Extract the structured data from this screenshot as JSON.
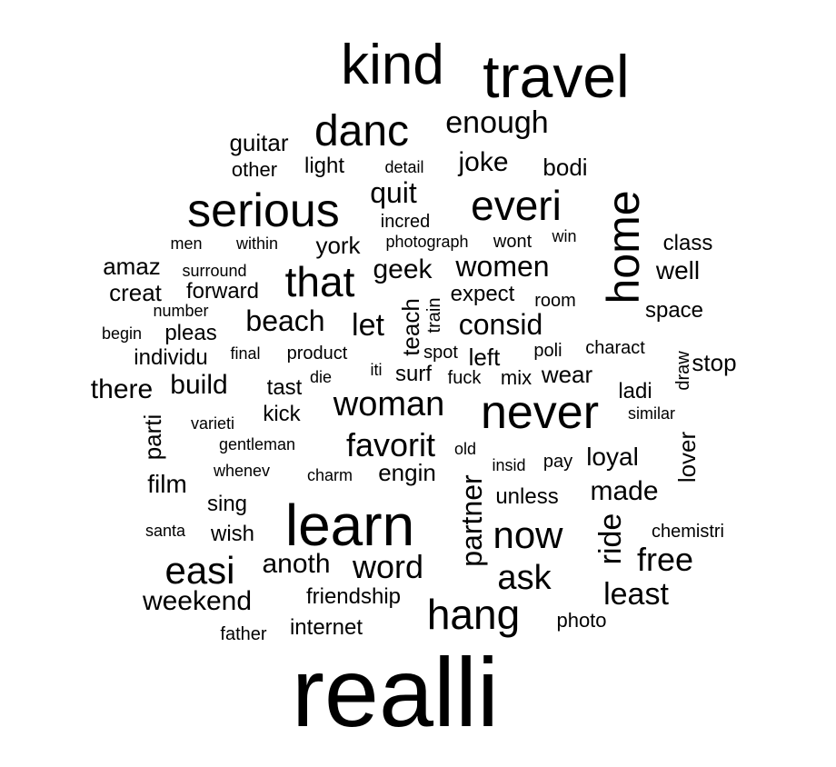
{
  "words": [
    {
      "text": "realli",
      "weight": 100,
      "orientation": "horizontal"
    },
    {
      "text": "travel",
      "weight": 60,
      "orientation": "horizontal"
    },
    {
      "text": "kind",
      "weight": 54,
      "orientation": "horizontal"
    },
    {
      "text": "learn",
      "weight": 52,
      "orientation": "horizontal"
    },
    {
      "text": "never",
      "weight": 44,
      "orientation": "horizontal"
    },
    {
      "text": "serious",
      "weight": 44,
      "orientation": "horizontal"
    },
    {
      "text": "home",
      "weight": 41,
      "orientation": "vertical"
    },
    {
      "text": "danc",
      "weight": 40,
      "orientation": "horizontal"
    },
    {
      "text": "everi",
      "weight": 39,
      "orientation": "horizontal"
    },
    {
      "text": "that",
      "weight": 38,
      "orientation": "horizontal"
    },
    {
      "text": "hang",
      "weight": 38,
      "orientation": "horizontal"
    },
    {
      "text": "easi",
      "weight": 36,
      "orientation": "horizontal"
    },
    {
      "text": "now",
      "weight": 35,
      "orientation": "horizontal"
    },
    {
      "text": "woman",
      "weight": 34,
      "orientation": "horizontal"
    },
    {
      "text": "favorit",
      "weight": 32,
      "orientation": "horizontal"
    },
    {
      "text": "ask",
      "weight": 32,
      "orientation": "horizontal"
    },
    {
      "text": "word",
      "weight": 31,
      "orientation": "horizontal"
    },
    {
      "text": "free",
      "weight": 31,
      "orientation": "horizontal"
    },
    {
      "text": "enough",
      "weight": 30,
      "orientation": "horizontal"
    },
    {
      "text": "partner",
      "weight": 30,
      "orientation": "vertical"
    },
    {
      "text": "ride",
      "weight": 30,
      "orientation": "vertical"
    },
    {
      "text": "quit",
      "weight": 29,
      "orientation": "horizontal"
    },
    {
      "text": "women",
      "weight": 29,
      "orientation": "horizontal"
    },
    {
      "text": "beach",
      "weight": 29,
      "orientation": "horizontal"
    },
    {
      "text": "let",
      "weight": 29,
      "orientation": "horizontal"
    },
    {
      "text": "consid",
      "weight": 28,
      "orientation": "horizontal"
    },
    {
      "text": "least",
      "weight": 28,
      "orientation": "horizontal"
    },
    {
      "text": "geek",
      "weight": 27,
      "orientation": "horizontal"
    },
    {
      "text": "joke",
      "weight": 27,
      "orientation": "horizontal"
    },
    {
      "text": "weekend",
      "weight": 27,
      "orientation": "horizontal"
    },
    {
      "text": "anoth",
      "weight": 27,
      "orientation": "horizontal"
    },
    {
      "text": "made",
      "weight": 26,
      "orientation": "horizontal"
    },
    {
      "text": "there",
      "weight": 26,
      "orientation": "horizontal"
    },
    {
      "text": "build",
      "weight": 26,
      "orientation": "horizontal"
    },
    {
      "text": "well",
      "weight": 25,
      "orientation": "horizontal"
    },
    {
      "text": "loyal",
      "weight": 25,
      "orientation": "horizontal"
    },
    {
      "text": "film",
      "weight": 25,
      "orientation": "horizontal"
    },
    {
      "text": "engin",
      "weight": 24,
      "orientation": "horizontal"
    },
    {
      "text": "guitar",
      "weight": 24,
      "orientation": "horizontal"
    },
    {
      "text": "teach",
      "weight": 24,
      "orientation": "vertical"
    },
    {
      "text": "parti",
      "weight": 24,
      "orientation": "vertical"
    },
    {
      "text": "amaz",
      "weight": 23,
      "orientation": "horizontal"
    },
    {
      "text": "creat",
      "weight": 23,
      "orientation": "horizontal"
    },
    {
      "text": "bodi",
      "weight": 23,
      "orientation": "horizontal"
    },
    {
      "text": "york",
      "weight": 23,
      "orientation": "horizontal"
    },
    {
      "text": "forward",
      "weight": 23,
      "orientation": "horizontal"
    },
    {
      "text": "left",
      "weight": 23,
      "orientation": "horizontal"
    },
    {
      "text": "wear",
      "weight": 23,
      "orientation": "horizontal"
    },
    {
      "text": "stop",
      "weight": 23,
      "orientation": "horizontal"
    },
    {
      "text": "lover",
      "weight": 23,
      "orientation": "vertical"
    },
    {
      "text": "light",
      "weight": 22,
      "orientation": "horizontal"
    },
    {
      "text": "class",
      "weight": 22,
      "orientation": "horizontal"
    },
    {
      "text": "expect",
      "weight": 22,
      "orientation": "horizontal"
    },
    {
      "text": "space",
      "weight": 22,
      "orientation": "horizontal"
    },
    {
      "text": "pleas",
      "weight": 22,
      "orientation": "horizontal"
    },
    {
      "text": "surf",
      "weight": 22,
      "orientation": "horizontal"
    },
    {
      "text": "tast",
      "weight": 22,
      "orientation": "horizontal"
    },
    {
      "text": "kick",
      "weight": 22,
      "orientation": "horizontal"
    },
    {
      "text": "sing",
      "weight": 22,
      "orientation": "horizontal"
    },
    {
      "text": "unless",
      "weight": 22,
      "orientation": "horizontal"
    },
    {
      "text": "wish",
      "weight": 22,
      "orientation": "horizontal"
    },
    {
      "text": "friendship",
      "weight": 22,
      "orientation": "horizontal"
    },
    {
      "text": "internet",
      "weight": 22,
      "orientation": "horizontal"
    },
    {
      "text": "ladi",
      "weight": 21,
      "orientation": "horizontal"
    },
    {
      "text": "individu",
      "weight": 21,
      "orientation": "horizontal"
    },
    {
      "text": "photo",
      "weight": 21,
      "orientation": "horizontal"
    },
    {
      "text": "other",
      "weight": 21,
      "orientation": "horizontal"
    },
    {
      "text": "mix",
      "weight": 21,
      "orientation": "horizontal"
    },
    {
      "text": "wont",
      "weight": 20,
      "orientation": "horizontal"
    },
    {
      "text": "train",
      "weight": 20,
      "orientation": "vertical"
    },
    {
      "text": "draw",
      "weight": 20,
      "orientation": "vertical"
    },
    {
      "text": "incred",
      "weight": 19,
      "orientation": "horizontal"
    },
    {
      "text": "product",
      "weight": 19,
      "orientation": "horizontal"
    },
    {
      "text": "spot",
      "weight": 19,
      "orientation": "horizontal"
    },
    {
      "text": "fuck",
      "weight": 19,
      "orientation": "horizontal"
    },
    {
      "text": "pay",
      "weight": 19,
      "orientation": "horizontal"
    },
    {
      "text": "room",
      "weight": 19,
      "orientation": "horizontal"
    },
    {
      "text": "poli",
      "weight": 19,
      "orientation": "horizontal"
    },
    {
      "text": "charact",
      "weight": 19,
      "orientation": "horizontal"
    },
    {
      "text": "chemistri",
      "weight": 19,
      "orientation": "horizontal"
    },
    {
      "text": "father",
      "weight": 19,
      "orientation": "horizontal"
    },
    {
      "text": "within",
      "weight": 18,
      "orientation": "horizontal"
    },
    {
      "text": "photograph",
      "weight": 18,
      "orientation": "horizontal"
    },
    {
      "text": "final",
      "weight": 18,
      "orientation": "horizontal"
    },
    {
      "text": "insid",
      "weight": 18,
      "orientation": "horizontal"
    },
    {
      "text": "santa",
      "weight": 18,
      "orientation": "horizontal"
    },
    {
      "text": "varieti",
      "weight": 18,
      "orientation": "horizontal"
    },
    {
      "text": "whenev",
      "weight": 18,
      "orientation": "horizontal"
    },
    {
      "text": "charm",
      "weight": 18,
      "orientation": "horizontal"
    },
    {
      "text": "detail",
      "weight": 17,
      "orientation": "horizontal"
    },
    {
      "text": "men",
      "weight": 17,
      "orientation": "horizontal"
    },
    {
      "text": "surround",
      "weight": 17,
      "orientation": "horizontal"
    },
    {
      "text": "number",
      "weight": 17,
      "orientation": "horizontal"
    },
    {
      "text": "begin",
      "weight": 17,
      "orientation": "horizontal"
    },
    {
      "text": "win",
      "weight": 17,
      "orientation": "horizontal"
    },
    {
      "text": "die",
      "weight": 17,
      "orientation": "horizontal"
    },
    {
      "text": "iti",
      "weight": 17,
      "orientation": "horizontal"
    },
    {
      "text": "gentleman",
      "weight": 17,
      "orientation": "horizontal"
    },
    {
      "text": "similar",
      "weight": 17,
      "orientation": "horizontal"
    },
    {
      "text": "old",
      "weight": 17,
      "orientation": "horizontal"
    }
  ]
}
